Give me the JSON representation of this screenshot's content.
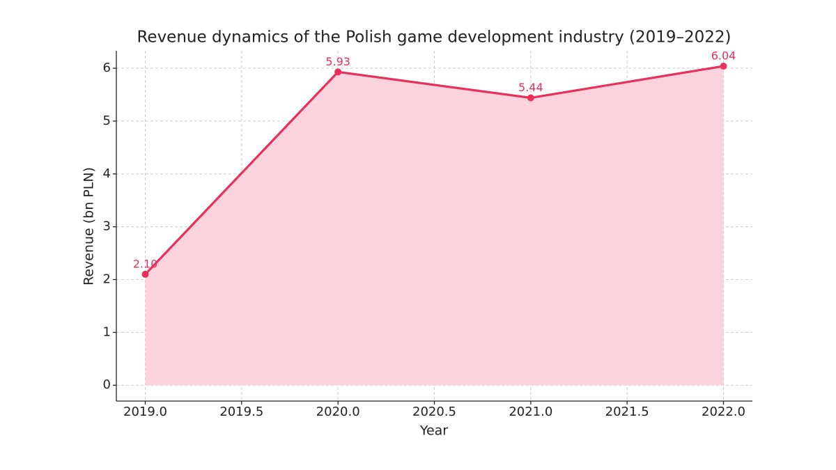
{
  "chart_data": {
    "type": "line",
    "title": "Revenue dynamics of the Polish game development industry (2019–2022)",
    "x_label": "Year",
    "y_label": "Revenue (bn PLN)",
    "x": [
      2019,
      2020,
      2021,
      2022
    ],
    "series": [
      {
        "name": "Revenue",
        "color": "#e8305a",
        "values": [
          2.1,
          5.93,
          5.44,
          6.04
        ],
        "value_labels": [
          "2.10",
          "5.93",
          "5.44",
          "6.04"
        ]
      }
    ],
    "fill": true,
    "fill_color": "#fbd3dc",
    "xlim": [
      2018.85,
      2022.15
    ],
    "xticks": [
      {
        "value": 2019,
        "label": "2019.0"
      },
      {
        "value": 2019.5,
        "label": "2019.5"
      },
      {
        "value": 2020,
        "label": "2020.0"
      },
      {
        "value": 2020.5,
        "label": "2020.5"
      },
      {
        "value": 2021,
        "label": "2021.0"
      },
      {
        "value": 2021.5,
        "label": "2021.5"
      },
      {
        "value": 2022,
        "label": "2022.0"
      }
    ],
    "ylim": [
      -0.3,
      6.33
    ],
    "yticks": [
      0,
      1,
      2,
      3,
      4,
      5,
      6
    ],
    "grid": true
  }
}
